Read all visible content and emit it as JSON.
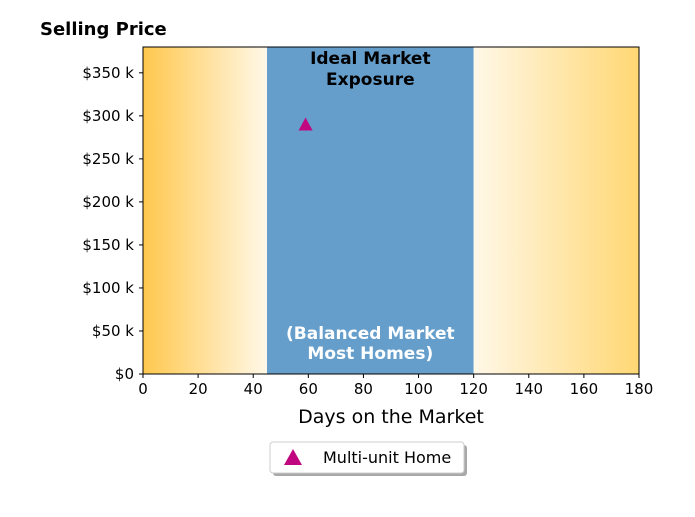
{
  "chart_data": {
    "type": "scatter",
    "title": "Selling Price",
    "xlabel": "Days on the Market",
    "ylabel": "",
    "xlim": [
      0,
      180
    ],
    "ylim": [
      0,
      380000
    ],
    "x_ticks": [
      0,
      20,
      40,
      60,
      80,
      100,
      120,
      140,
      160,
      180
    ],
    "x_tick_labels": [
      "0",
      "20",
      "40",
      "60",
      "80",
      "100",
      "120",
      "140",
      "160",
      "180"
    ],
    "y_ticks": [
      0,
      50000,
      100000,
      150000,
      200000,
      250000,
      300000,
      350000
    ],
    "y_tick_labels": [
      "$0",
      "$50 k",
      "$100 k",
      "$150 k",
      "$200 k",
      "$250 k",
      "$300 k",
      "$350 k"
    ],
    "grid": false,
    "bands": [
      {
        "kind": "gradient",
        "x_start": 0,
        "x_end": 45,
        "from_color": "#ffc84e",
        "to_color": "#fff8e8"
      },
      {
        "kind": "solid",
        "x_start": 45,
        "x_end": 120,
        "color": "#659ecb"
      },
      {
        "kind": "gradient",
        "x_start": 120,
        "x_end": 180,
        "from_color": "#fff8e8",
        "to_color": "#ffd774"
      }
    ],
    "annotations": [
      {
        "lines": [
          "Ideal Market",
          "Exposure"
        ],
        "color": "#000000"
      },
      {
        "lines": [
          "(Balanced Market",
          "Most Homes)"
        ],
        "color": "#ffffff"
      }
    ],
    "series": [
      {
        "name": "Multi-unit Home",
        "marker": "triangle",
        "color": "#c0077f",
        "points": [
          {
            "x": 59,
            "y": 290000
          }
        ]
      }
    ],
    "legend": {
      "position": "bottom-center",
      "label": "Multi-unit Home"
    }
  }
}
